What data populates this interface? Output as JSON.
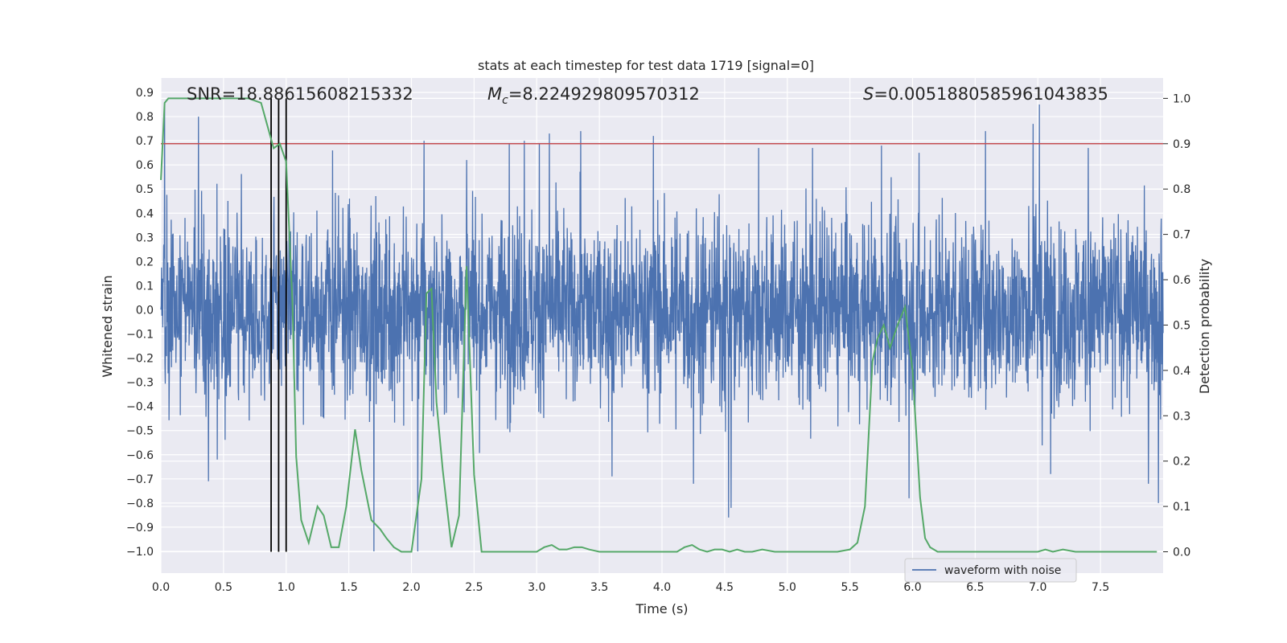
{
  "chart_data": {
    "type": "line",
    "title": "stats at each timestep for test data 1719 [signal=0]",
    "xlabel": "Time (s)",
    "ylabel": "Whitened strain",
    "y2label": "Detection probability",
    "xlim": [
      0.0,
      8.0
    ],
    "ylim": [
      -1.09,
      0.96
    ],
    "y2lim": [
      -0.047,
      1.045
    ],
    "x_ticks": [
      "0.0",
      "0.5",
      "1.0",
      "1.5",
      "2.0",
      "2.5",
      "3.0",
      "3.5",
      "4.0",
      "4.5",
      "5.0",
      "5.5",
      "6.0",
      "6.5",
      "7.0",
      "7.5"
    ],
    "y_ticks": [
      "0.9",
      "0.8",
      "0.7",
      "0.6",
      "0.5",
      "0.4",
      "0.3",
      "0.2",
      "0.1",
      "0.0",
      "−0.1",
      "−0.2",
      "−0.3",
      "−0.4",
      "−0.5",
      "−0.6",
      "−0.7",
      "−0.8",
      "−0.9",
      "−1.0"
    ],
    "y2_ticks": [
      "1.0",
      "0.9",
      "0.8",
      "0.7",
      "0.6",
      "0.5",
      "0.4",
      "0.3",
      "0.2",
      "0.1",
      "0.0"
    ],
    "grid": true,
    "legend": {
      "placement": "lower-right",
      "entries": [
        "waveform with noise"
      ]
    },
    "annotations": {
      "snr": "SNR=18.88615608215332",
      "mc_symbol": "M",
      "mc_sub": "c",
      "mc_value": "=8.224929809570312",
      "s_symbol": "S",
      "s_value": "=0.0051880585961043835"
    },
    "threshold": {
      "axis": "y2",
      "value": 0.9,
      "color": "#c44e52"
    },
    "vlines": [
      0.88,
      0.94,
      1.0
    ],
    "series": [
      {
        "name": "waveform with noise",
        "axis": "y",
        "color": "#4c72b0",
        "kind": "noisy-strain",
        "spikes": [
          [
            0.03,
            0.86
          ],
          [
            0.3,
            0.8
          ],
          [
            0.38,
            -0.71
          ],
          [
            0.45,
            -0.62
          ],
          [
            1.37,
            0.66
          ],
          [
            1.7,
            -1.0
          ],
          [
            2.05,
            -1.0
          ],
          [
            2.1,
            0.7
          ],
          [
            2.44,
            0.62
          ],
          [
            2.78,
            0.69
          ],
          [
            2.9,
            0.7
          ],
          [
            3.02,
            0.69
          ],
          [
            3.1,
            0.73
          ],
          [
            3.35,
            0.74
          ],
          [
            3.6,
            -0.69
          ],
          [
            3.93,
            0.72
          ],
          [
            4.25,
            -0.72
          ],
          [
            4.53,
            -0.86
          ],
          [
            4.55,
            -0.82
          ],
          [
            4.77,
            0.67
          ],
          [
            5.2,
            0.67
          ],
          [
            5.75,
            0.68
          ],
          [
            5.97,
            -0.78
          ],
          [
            6.05,
            0.65
          ],
          [
            6.58,
            0.74
          ],
          [
            6.96,
            0.77
          ],
          [
            7.01,
            0.85
          ],
          [
            7.1,
            -0.68
          ],
          [
            7.4,
            0.67
          ],
          [
            7.88,
            -0.72
          ],
          [
            7.96,
            -0.8
          ]
        ]
      },
      {
        "name": "",
        "axis": "y2",
        "color": "#55a868",
        "x": [
          0.0,
          0.03,
          0.06,
          0.12,
          0.2,
          0.3,
          0.4,
          0.5,
          0.6,
          0.7,
          0.8,
          0.83,
          0.86,
          0.9,
          0.95,
          1.0,
          1.05,
          1.08,
          1.12,
          1.18,
          1.25,
          1.3,
          1.36,
          1.42,
          1.48,
          1.55,
          1.6,
          1.68,
          1.75,
          1.8,
          1.86,
          1.92,
          2.0,
          2.08,
          2.12,
          2.16,
          2.2,
          2.25,
          2.32,
          2.38,
          2.44,
          2.5,
          2.56,
          2.62,
          2.7,
          2.78,
          2.86,
          2.94,
          3.0,
          3.06,
          3.12,
          3.18,
          3.24,
          3.3,
          3.36,
          3.42,
          3.5,
          3.56,
          3.62,
          3.7,
          3.78,
          3.86,
          3.94,
          4.0,
          4.06,
          4.12,
          4.18,
          4.24,
          4.3,
          4.36,
          4.42,
          4.48,
          4.54,
          4.6,
          4.66,
          4.72,
          4.8,
          4.9,
          5.0,
          5.1,
          5.2,
          5.3,
          5.4,
          5.5,
          5.56,
          5.62,
          5.68,
          5.72,
          5.77,
          5.82,
          5.88,
          5.94,
          6.0,
          6.06,
          6.1,
          6.14,
          6.2,
          6.26,
          6.36,
          6.5,
          6.6,
          6.7,
          6.8,
          6.9,
          7.0,
          7.06,
          7.12,
          7.2,
          7.3,
          7.4,
          7.5,
          7.6,
          7.7,
          7.8,
          7.9,
          7.95
        ],
        "values": [
          0.82,
          0.99,
          1.0,
          1.0,
          1.0,
          1.0,
          1.0,
          1.0,
          1.0,
          1.0,
          0.99,
          0.96,
          0.93,
          0.89,
          0.9,
          0.86,
          0.55,
          0.21,
          0.07,
          0.02,
          0.1,
          0.08,
          0.01,
          0.01,
          0.1,
          0.27,
          0.18,
          0.07,
          0.05,
          0.03,
          0.01,
          0.0,
          0.0,
          0.16,
          0.57,
          0.58,
          0.33,
          0.18,
          0.01,
          0.08,
          0.63,
          0.17,
          0.0,
          0.0,
          0.0,
          0.0,
          0.0,
          0.0,
          0.0,
          0.01,
          0.015,
          0.005,
          0.005,
          0.01,
          0.01,
          0.005,
          0.0,
          0.0,
          0.0,
          0.0,
          0.0,
          0.0,
          0.0,
          0.0,
          0.0,
          0.0,
          0.01,
          0.015,
          0.005,
          0.0,
          0.005,
          0.005,
          0.0,
          0.005,
          0.0,
          0.0,
          0.005,
          0.0,
          0.0,
          0.0,
          0.0,
          0.0,
          0.0,
          0.005,
          0.02,
          0.1,
          0.42,
          0.47,
          0.5,
          0.45,
          0.5,
          0.54,
          0.4,
          0.12,
          0.03,
          0.01,
          0.0,
          0.0,
          0.0,
          0.0,
          0.0,
          0.0,
          0.0,
          0.0,
          0.0,
          0.005,
          0.0,
          0.005,
          0.0,
          0.0,
          0.0,
          0.0,
          0.0,
          0.0,
          0.0,
          0.0
        ]
      }
    ]
  }
}
